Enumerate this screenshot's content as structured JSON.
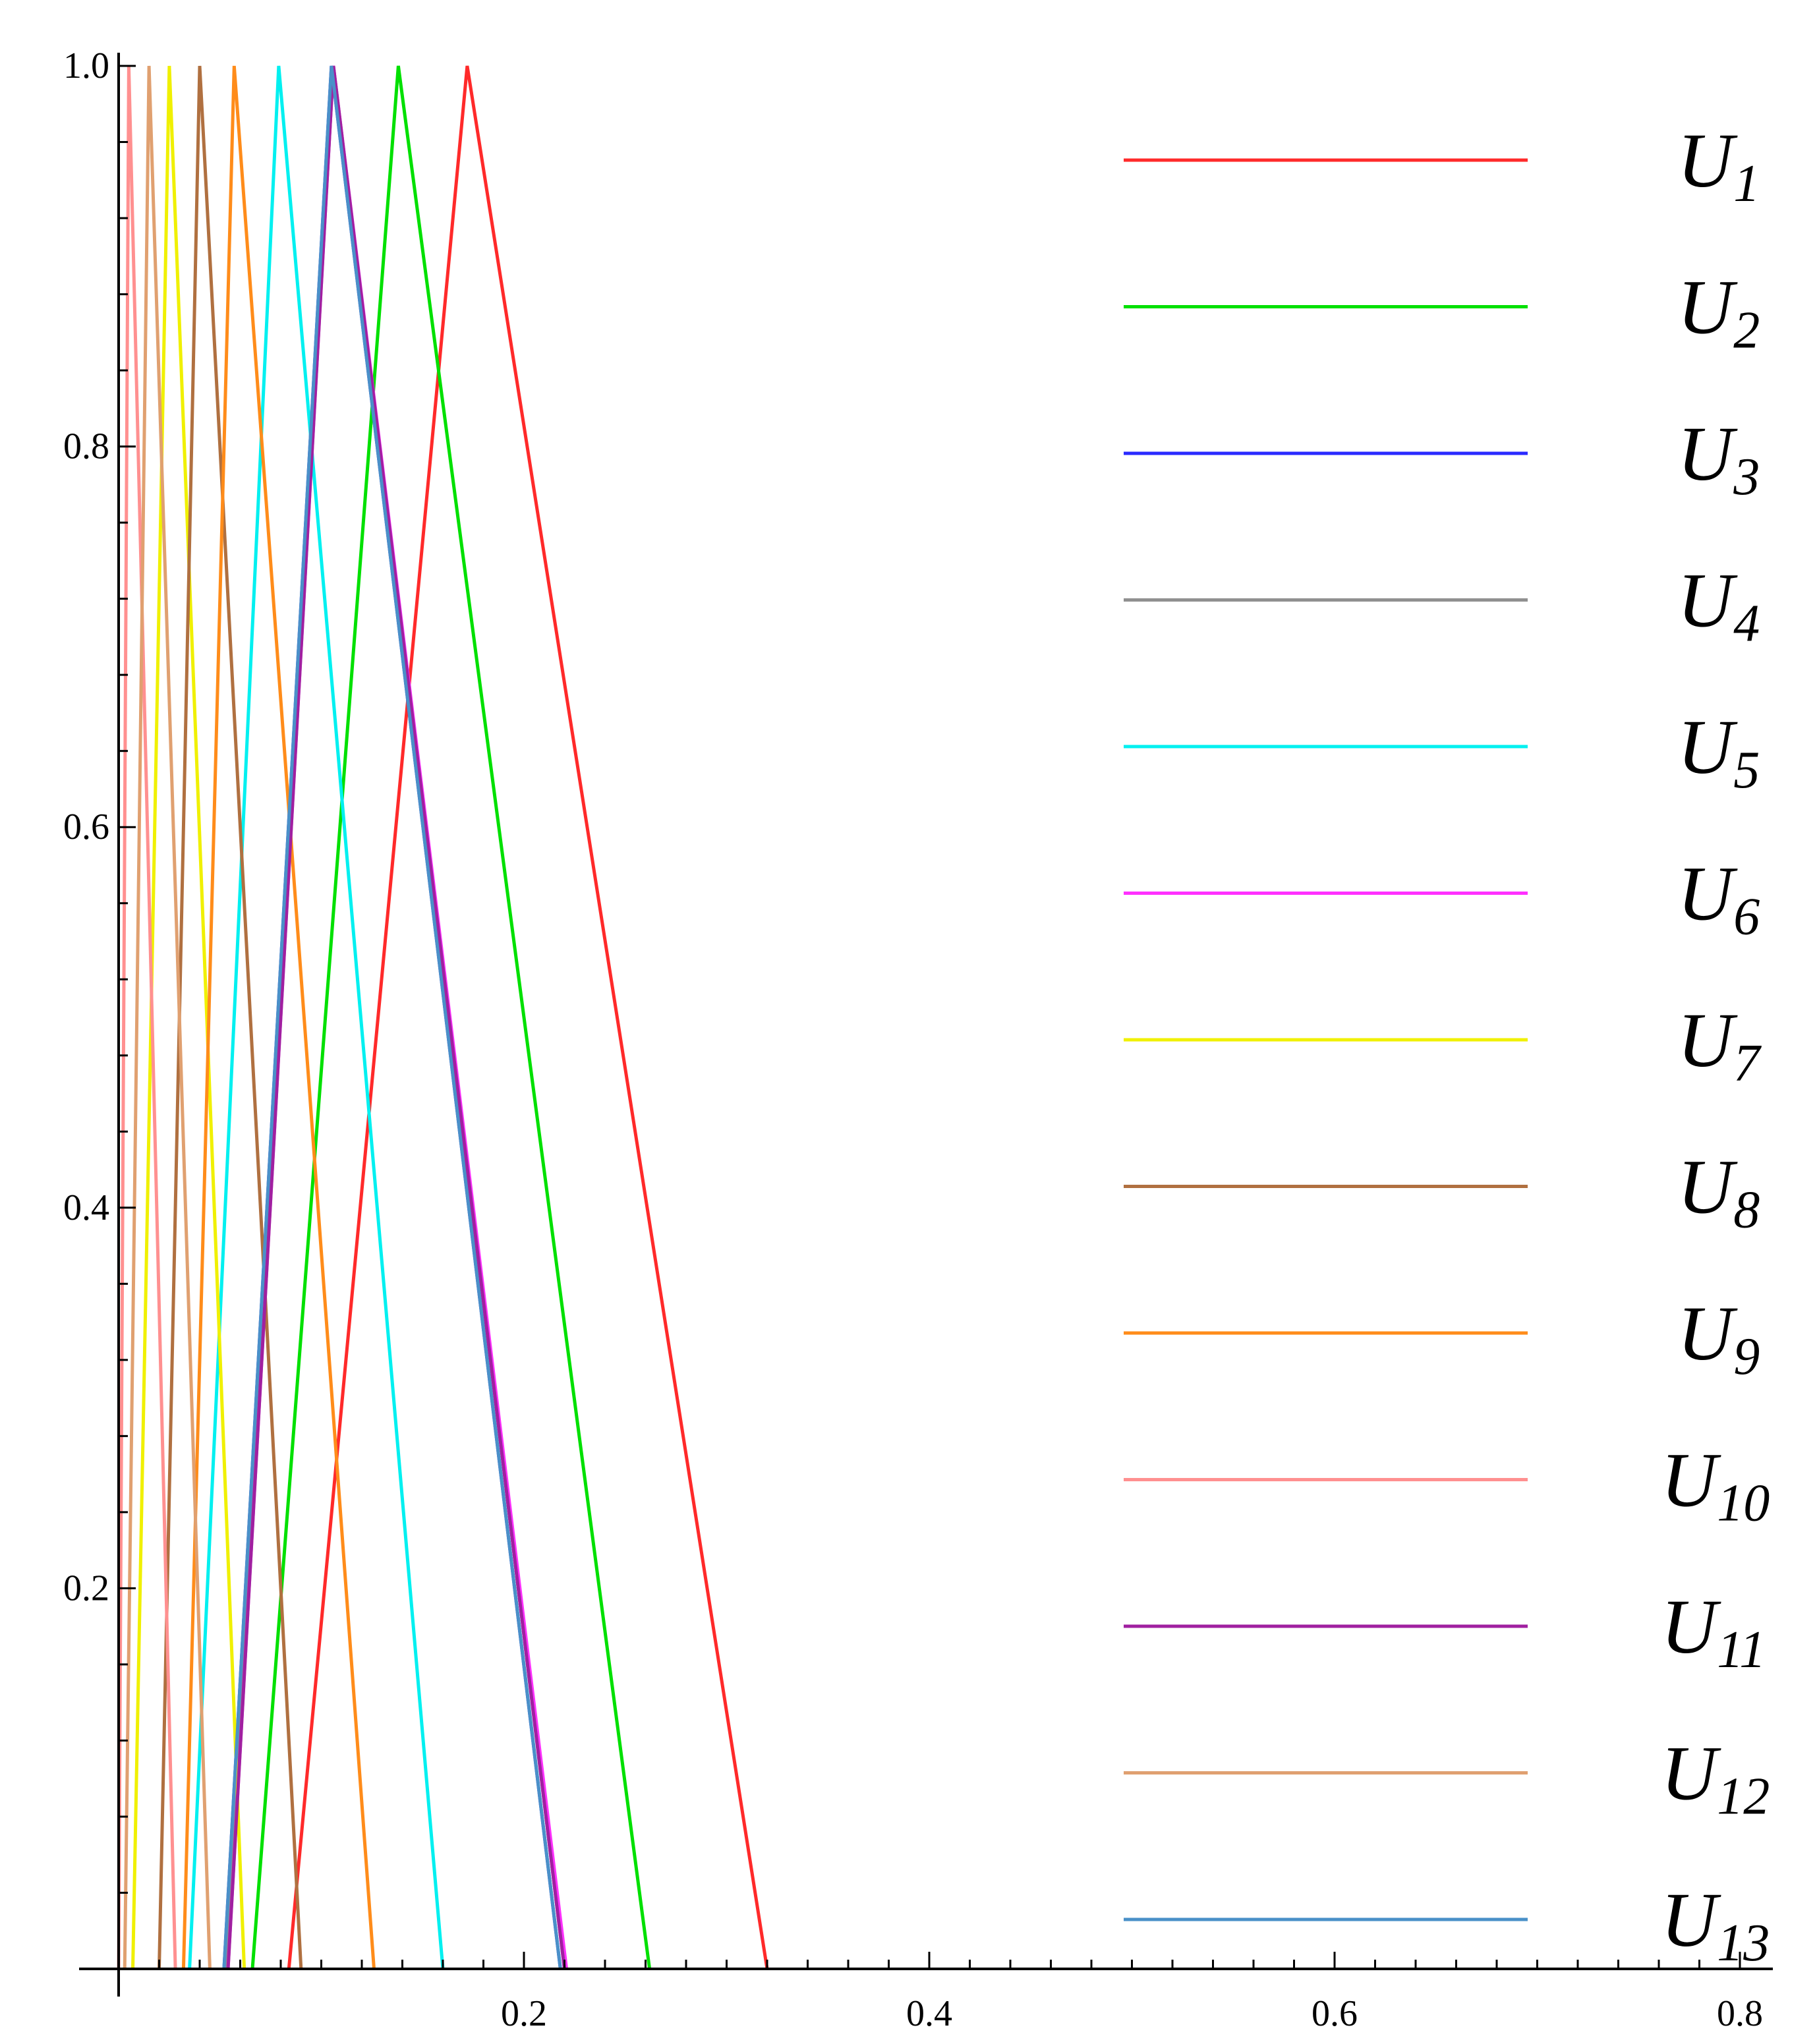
{
  "chart_data": {
    "type": "line",
    "xlim": [
      0,
      0.8
    ],
    "ylim": [
      0,
      1.0
    ],
    "x_ticks": [
      {
        "value": 0.2,
        "label": "0.2"
      },
      {
        "value": 0.4,
        "label": "0.4"
      },
      {
        "value": 0.6,
        "label": "0.6"
      },
      {
        "value": 0.8,
        "label": "0.8"
      }
    ],
    "y_ticks": [
      {
        "value": 0.2,
        "label": "0.2"
      },
      {
        "value": 0.4,
        "label": "0.4"
      },
      {
        "value": 0.6,
        "label": "0.6"
      },
      {
        "value": 0.8,
        "label": "0.8"
      },
      {
        "value": 1.0,
        "label": "1.0"
      }
    ],
    "grid": false,
    "legend_position": "right",
    "series": [
      {
        "name": "U",
        "sub": "1",
        "color": "#ff2a2a",
        "points": [
          [
            0.084,
            0
          ],
          [
            0.172,
            1
          ],
          [
            0.32,
            0
          ]
        ]
      },
      {
        "name": "U",
        "sub": "2",
        "color": "#00e000",
        "points": [
          [
            0.066,
            0
          ],
          [
            0.138,
            1
          ],
          [
            0.262,
            0
          ]
        ]
      },
      {
        "name": "U",
        "sub": "3",
        "color": "#2a2aff",
        "points": [
          [
            0.052,
            0
          ],
          [
            0.105,
            1
          ],
          [
            0.218,
            0
          ]
        ]
      },
      {
        "name": "U",
        "sub": "4",
        "color": "#909090",
        "points": [
          [
            0.053,
            0
          ],
          [
            0.106,
            1
          ],
          [
            0.22,
            0
          ]
        ]
      },
      {
        "name": "U",
        "sub": "5",
        "color": "#00f0f0",
        "points": [
          [
            0.035,
            0
          ],
          [
            0.079,
            1
          ],
          [
            0.16,
            0
          ]
        ]
      },
      {
        "name": "U",
        "sub": "6",
        "color": "#ff30ff",
        "points": [
          [
            0.054,
            0
          ],
          [
            0.106,
            1
          ],
          [
            0.221,
            0
          ]
        ]
      },
      {
        "name": "U",
        "sub": "7",
        "color": "#f0f000",
        "points": [
          [
            0.007,
            0
          ],
          [
            0.025,
            1
          ],
          [
            0.062,
            0
          ]
        ]
      },
      {
        "name": "U",
        "sub": "8",
        "color": "#b07040",
        "points": [
          [
            0.02,
            0
          ],
          [
            0.04,
            1
          ],
          [
            0.09,
            0
          ]
        ]
      },
      {
        "name": "U",
        "sub": "9",
        "color": "#ff8c1a",
        "points": [
          [
            0.032,
            0
          ],
          [
            0.057,
            1
          ],
          [
            0.126,
            0
          ]
        ]
      },
      {
        "name": "U",
        "sub": "10",
        "color": "#ff9090",
        "points": [
          [
            0.0,
            0
          ],
          [
            0.005,
            1
          ],
          [
            0.028,
            0
          ]
        ]
      },
      {
        "name": "U",
        "sub": "11",
        "color": "#a020a0",
        "points": [
          [
            0.054,
            0
          ],
          [
            0.106,
            1
          ],
          [
            0.22,
            0
          ]
        ]
      },
      {
        "name": "U",
        "sub": "12",
        "color": "#e0a070",
        "points": [
          [
            0.003,
            0
          ],
          [
            0.015,
            1
          ],
          [
            0.045,
            0
          ]
        ]
      },
      {
        "name": "U",
        "sub": "13",
        "color": "#4a90c8",
        "points": [
          [
            0.052,
            0
          ],
          [
            0.105,
            1
          ],
          [
            0.218,
            0
          ]
        ]
      }
    ]
  }
}
